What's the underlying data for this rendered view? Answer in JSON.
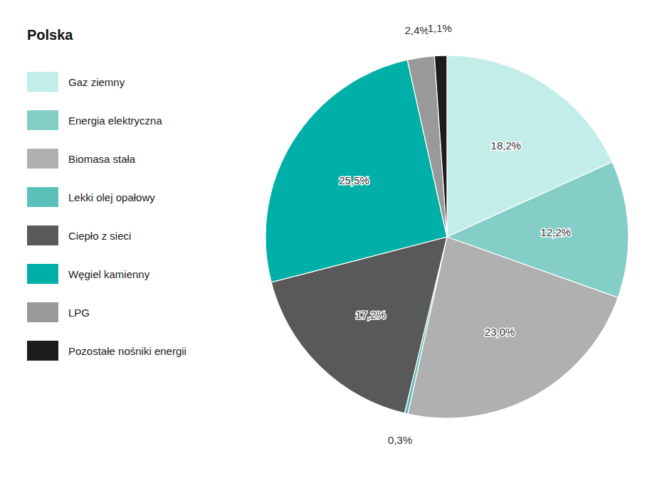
{
  "chart_data": {
    "type": "pie",
    "title": "Polska",
    "categories": [
      "Gaz ziemny",
      "Energia elektryczna",
      "Biomasa stała",
      "Lekki olej opałowy",
      "Ciepło z sieci",
      "Węgiel kamienny",
      "LPG",
      "Pozostałe nośniki energii"
    ],
    "values": [
      18.2,
      12.2,
      23.0,
      0.3,
      17.2,
      25.5,
      2.4,
      1.1
    ],
    "value_labels": [
      "18,2%",
      "12,2%",
      "23,0%",
      "0,3%",
      "17,2%",
      "25,5%",
      "2,4%",
      "1,1%"
    ],
    "colors": [
      "#c2ede8",
      "#85cec8",
      "#b0b0b0",
      "#5bbfba",
      "#595959",
      "#00b0a8",
      "#999999",
      "#1c1c1c"
    ],
    "legend": "left",
    "data_labels": true
  }
}
